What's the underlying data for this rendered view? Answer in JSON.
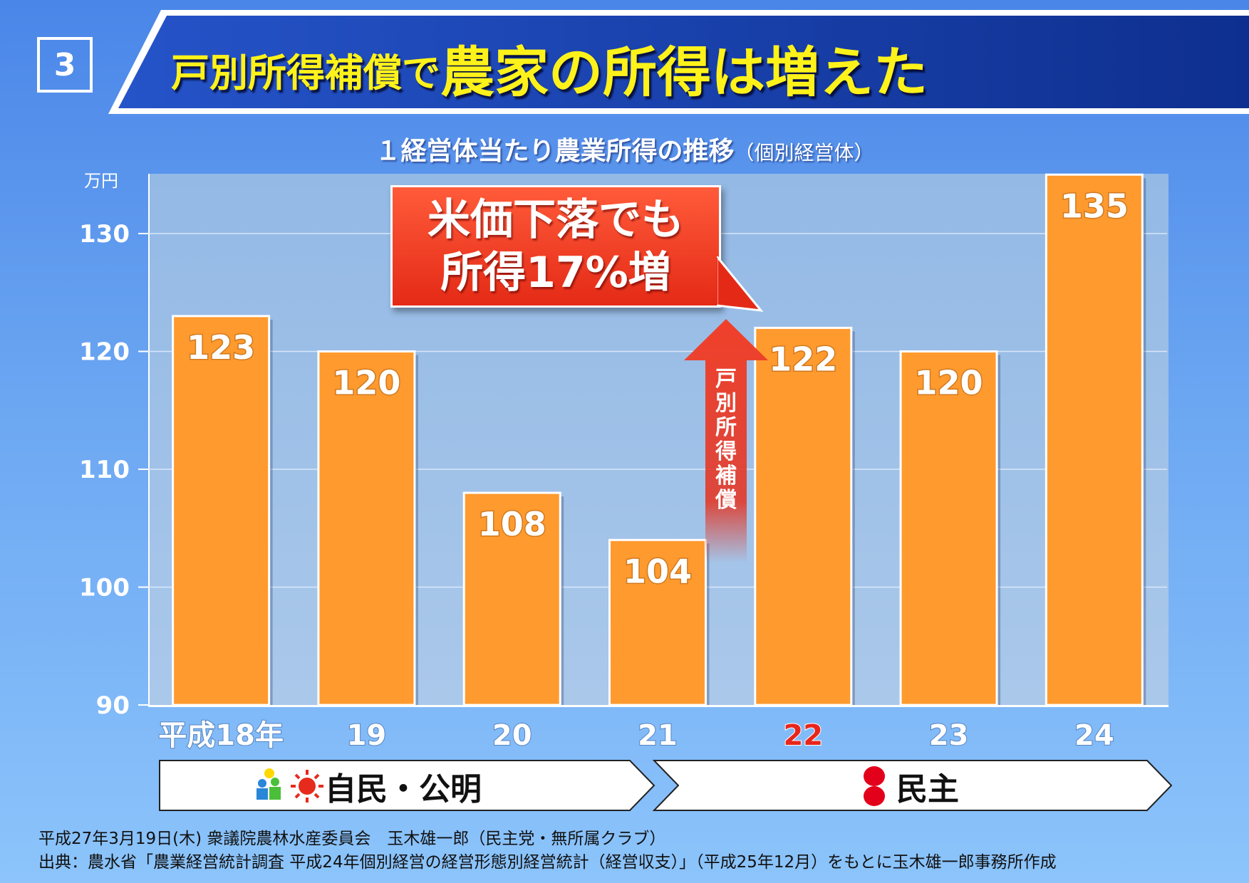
{
  "slide": {
    "number": "3"
  },
  "title": {
    "part1": "戸別所得補償で",
    "part2": "農家の所得は増えた"
  },
  "chart_data": {
    "type": "bar",
    "title": "１経営体当たり農業所得の推移",
    "subtitle": "（個別経営体）",
    "ylabel": "万円",
    "categories": [
      "平成18年",
      "19",
      "20",
      "21",
      "22",
      "23",
      "24"
    ],
    "values": [
      123,
      120,
      108,
      104,
      122,
      120,
      135
    ],
    "ylim": [
      90,
      135
    ],
    "yticks": [
      90,
      100,
      110,
      120,
      130
    ],
    "grid": true,
    "highlight_category": "22",
    "colors": {
      "bar": "#ff9a2e",
      "highlight_tick": "#e8261c"
    }
  },
  "callout": {
    "line1": "米価下落でも",
    "line2": "所得17%増"
  },
  "arrow": {
    "label": [
      "戸",
      "別",
      "所",
      "得",
      "補",
      "償"
    ]
  },
  "eras": [
    {
      "label": "自民・公明",
      "icons": [
        "ldp-logo-icon",
        "komeito-sun-icon"
      ]
    },
    {
      "label": "民主",
      "icons": [
        "dpj-logo-icon"
      ]
    }
  ],
  "footer": {
    "line1": "平成27年3月19日(木) 衆議院農林水産委員会　玉木雄一郎（民主党・無所属クラブ）",
    "line2": "出典：農水省「農業経営統計調査 平成24年個別経営の経営形態別経営統計（経営収支）」（平成25年12月）をもとに玉木雄一郎事務所作成"
  }
}
